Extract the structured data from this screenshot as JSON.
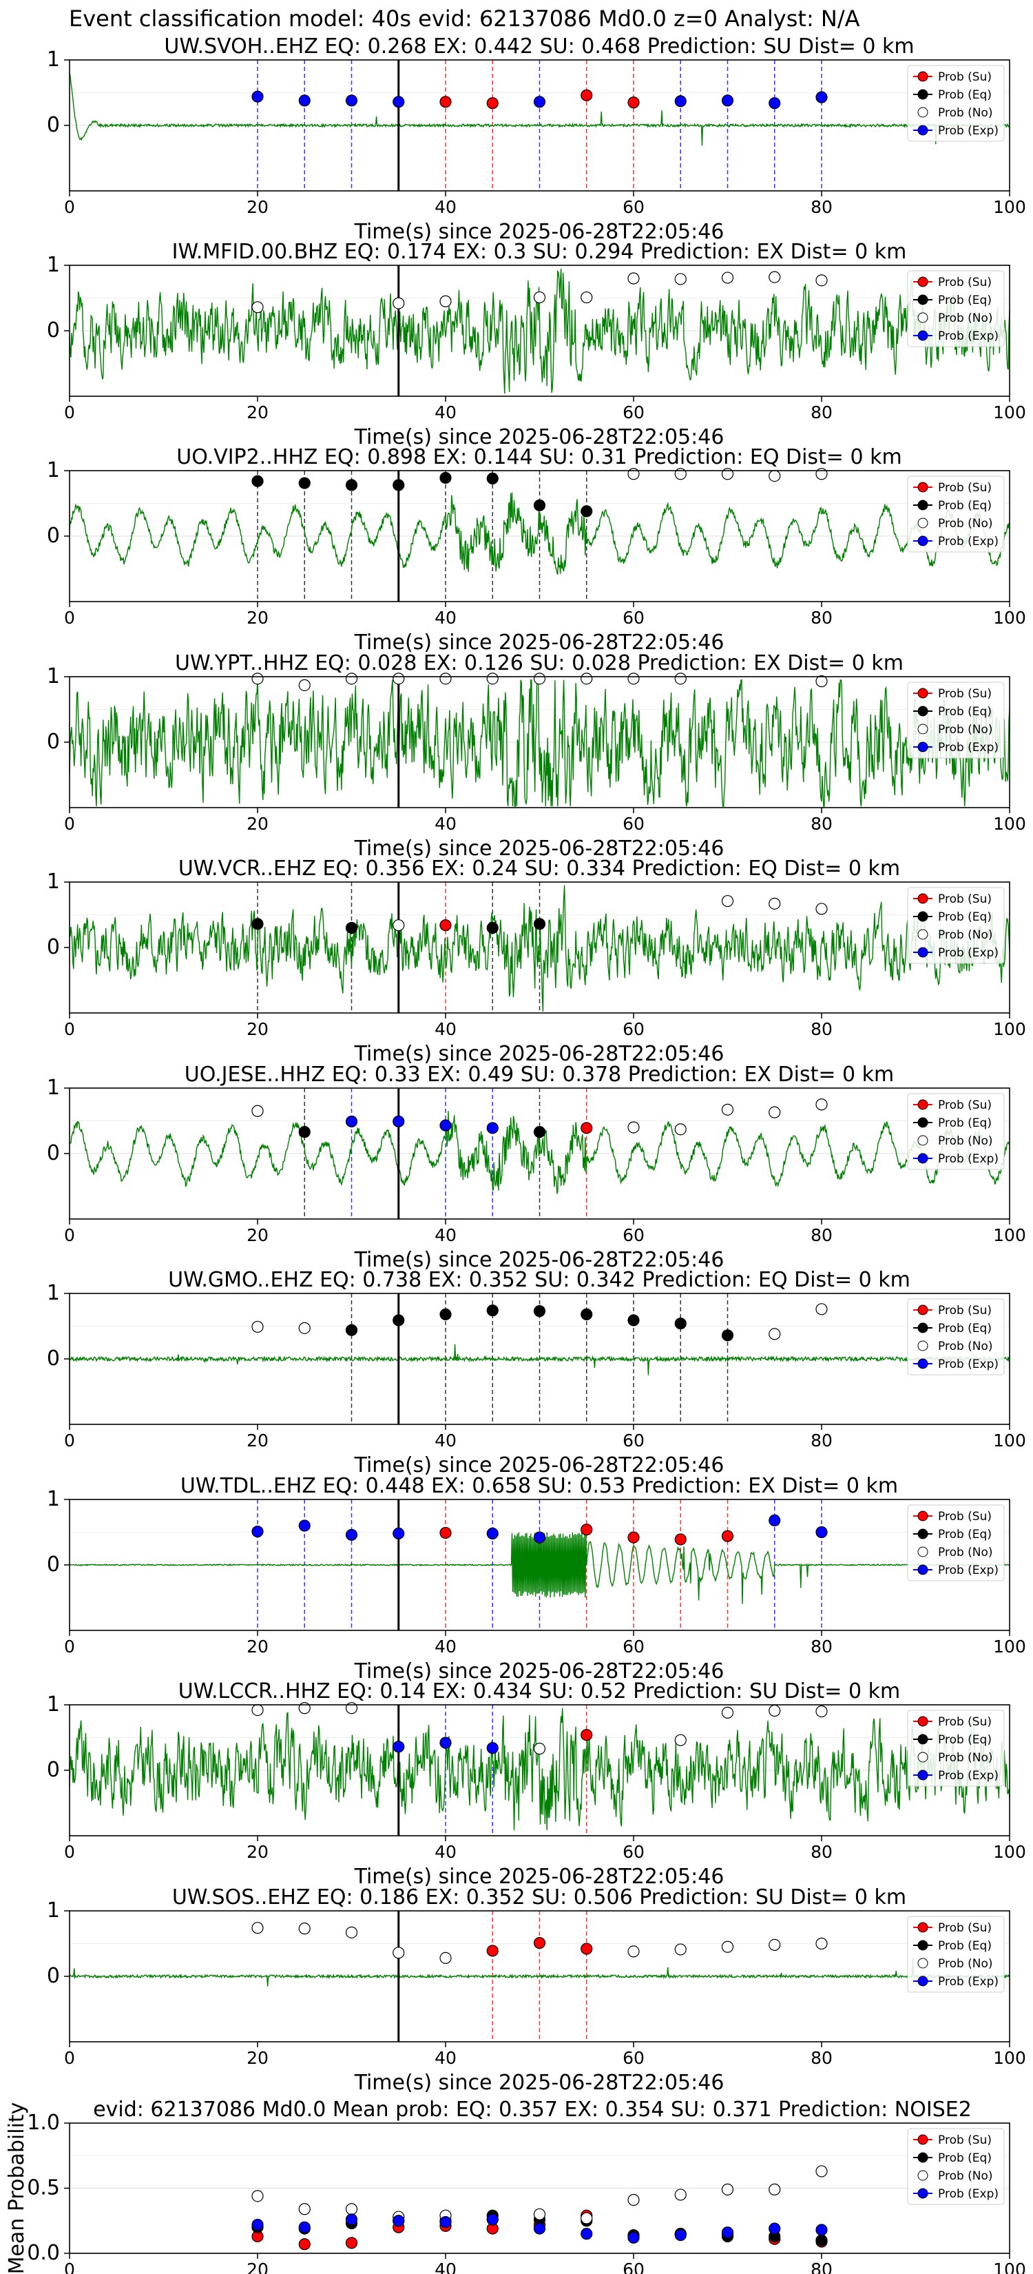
{
  "figure": {
    "suptitle": "Event classification model: 40s evid: 62137086 Md0.0 z=0 Analyst: N/A",
    "colors": {
      "su": "#ff0000",
      "eq": "#000000",
      "no": "#ffffff",
      "exp": "#0000ff",
      "waveform": "#008000",
      "grid": "#dddddd"
    },
    "legend_labels": [
      "Prob (Su)",
      "Prob (Eq)",
      "Prob (No)",
      "Prob (Exp)"
    ],
    "x_ticks": [
      0,
      20,
      40,
      60,
      80,
      100
    ],
    "station_y_ticks": [
      0,
      1
    ],
    "origin_time_s": 35,
    "window_times": [
      20,
      25,
      30,
      35,
      40,
      45,
      50,
      55,
      60,
      65,
      70,
      75,
      80
    ]
  },
  "chart_data": [
    {
      "type": "line",
      "title": "UW.SVOH..EHZ   EQ: 0.268  EX: 0.442  SU: 0.468   Prediction: SU    Dist= 0 km",
      "xlabel": "Time(s) since 2025-06-28T22:05:46",
      "xlim": [
        0,
        100
      ],
      "ylim": [
        -1,
        1
      ],
      "grid": true,
      "legend": "upper-right",
      "waveform": {
        "style": "quiet",
        "amp": 0.02,
        "onset": 0
      },
      "windows": [
        {
          "t": 20,
          "label": "exp",
          "p": 0.44
        },
        {
          "t": 25,
          "label": "exp",
          "p": 0.38
        },
        {
          "t": 30,
          "label": "exp",
          "p": 0.38
        },
        {
          "t": 35,
          "label": "exp",
          "p": 0.36
        },
        {
          "t": 40,
          "label": "su",
          "p": 0.36
        },
        {
          "t": 45,
          "label": "su",
          "p": 0.34
        },
        {
          "t": 50,
          "label": "exp",
          "p": 0.36
        },
        {
          "t": 55,
          "label": "su",
          "p": 0.46
        },
        {
          "t": 60,
          "label": "su",
          "p": 0.35
        },
        {
          "t": 65,
          "label": "exp",
          "p": 0.37
        },
        {
          "t": 70,
          "label": "exp",
          "p": 0.38
        },
        {
          "t": 75,
          "label": "exp",
          "p": 0.34
        },
        {
          "t": 80,
          "label": "exp",
          "p": 0.43
        }
      ]
    },
    {
      "type": "line",
      "title": "IW.MFID.00.BHZ   EQ: 0.174  EX: 0.3  SU: 0.294   Prediction: EX    Dist= 0 km",
      "xlabel": "Time(s) since 2025-06-28T22:05:46",
      "xlim": [
        0,
        100
      ],
      "ylim": [
        -1,
        1
      ],
      "grid": true,
      "legend": "upper-right",
      "waveform": {
        "style": "noisy",
        "amp": 0.35,
        "seed": 2
      },
      "windows": [
        {
          "t": 20,
          "label": "no",
          "p": 0.36
        },
        {
          "t": 35,
          "label": "no",
          "p": 0.42
        },
        {
          "t": 40,
          "label": "no",
          "p": 0.45
        },
        {
          "t": 50,
          "label": "no",
          "p": 0.51
        },
        {
          "t": 55,
          "label": "no",
          "p": 0.51
        },
        {
          "t": 60,
          "label": "no",
          "p": 0.8
        },
        {
          "t": 65,
          "label": "no",
          "p": 0.79
        },
        {
          "t": 70,
          "label": "no",
          "p": 0.81
        },
        {
          "t": 75,
          "label": "no",
          "p": 0.82
        },
        {
          "t": 80,
          "label": "no",
          "p": 0.77
        }
      ]
    },
    {
      "type": "line",
      "title": "UO.VIP2..HHZ   EQ: 0.898  EX: 0.144  SU: 0.31   Prediction: EQ    Dist= 0 km",
      "xlabel": "Time(s) since 2025-06-28T22:05:46",
      "xlim": [
        0,
        100
      ],
      "ylim": [
        -1,
        1
      ],
      "grid": true,
      "legend": "upper-right",
      "waveform": {
        "style": "wavy",
        "amp": 0.4,
        "seed": 3
      },
      "windows": [
        {
          "t": 20,
          "label": "eq",
          "p": 0.84
        },
        {
          "t": 25,
          "label": "eq",
          "p": 0.81
        },
        {
          "t": 30,
          "label": "eq",
          "p": 0.78
        },
        {
          "t": 35,
          "label": "eq",
          "p": 0.78
        },
        {
          "t": 40,
          "label": "eq",
          "p": 0.89
        },
        {
          "t": 45,
          "label": "eq",
          "p": 0.88
        },
        {
          "t": 50,
          "label": "eq",
          "p": 0.47
        },
        {
          "t": 55,
          "label": "eq",
          "p": 0.38
        },
        {
          "t": 60,
          "label": "no",
          "p": 0.95
        },
        {
          "t": 65,
          "label": "no",
          "p": 0.95
        },
        {
          "t": 70,
          "label": "no",
          "p": 0.95
        },
        {
          "t": 75,
          "label": "no",
          "p": 0.92
        },
        {
          "t": 80,
          "label": "no",
          "p": 0.95
        }
      ]
    },
    {
      "type": "line",
      "title": "UW.YPT..HHZ   EQ: 0.028  EX: 0.126  SU: 0.028   Prediction: EX    Dist= 0 km",
      "xlabel": "Time(s) since 2025-06-28T22:05:46",
      "xlim": [
        0,
        100
      ],
      "ylim": [
        -1,
        1
      ],
      "grid": true,
      "legend": "upper-right",
      "waveform": {
        "style": "noisy",
        "amp": 0.5,
        "seed": 4
      },
      "windows": [
        {
          "t": 20,
          "label": "no",
          "p": 0.97
        },
        {
          "t": 25,
          "label": "no",
          "p": 0.87
        },
        {
          "t": 30,
          "label": "no",
          "p": 0.97
        },
        {
          "t": 35,
          "label": "no",
          "p": 0.97
        },
        {
          "t": 40,
          "label": "no",
          "p": 0.97
        },
        {
          "t": 45,
          "label": "no",
          "p": 0.97
        },
        {
          "t": 50,
          "label": "no",
          "p": 0.97
        },
        {
          "t": 55,
          "label": "no",
          "p": 0.97
        },
        {
          "t": 60,
          "label": "no",
          "p": 0.97
        },
        {
          "t": 65,
          "label": "no",
          "p": 0.97
        },
        {
          "t": 80,
          "label": "no",
          "p": 0.93
        }
      ]
    },
    {
      "type": "line",
      "title": "UW.VCR..EHZ   EQ: 0.356  EX: 0.24  SU: 0.334   Prediction: EQ    Dist= 0 km",
      "xlabel": "Time(s) since 2025-06-28T22:05:46",
      "xlim": [
        0,
        100
      ],
      "ylim": [
        -1,
        1
      ],
      "grid": true,
      "legend": "upper-right",
      "waveform": {
        "style": "noisy",
        "amp": 0.3,
        "seed": 5
      },
      "windows": [
        {
          "t": 20,
          "label": "eq",
          "p": 0.36
        },
        {
          "t": 30,
          "label": "eq",
          "p": 0.3
        },
        {
          "t": 35,
          "label": "no",
          "p": 0.34
        },
        {
          "t": 40,
          "label": "su",
          "p": 0.34
        },
        {
          "t": 45,
          "label": "eq",
          "p": 0.3
        },
        {
          "t": 50,
          "label": "eq",
          "p": 0.36
        },
        {
          "t": 70,
          "label": "no",
          "p": 0.71
        },
        {
          "t": 75,
          "label": "no",
          "p": 0.67
        },
        {
          "t": 80,
          "label": "no",
          "p": 0.59
        }
      ]
    },
    {
      "type": "line",
      "title": "UO.JESE..HHZ   EQ: 0.33  EX: 0.49  SU: 0.378   Prediction: EX    Dist= 0 km",
      "xlabel": "Time(s) since 2025-06-28T22:05:46",
      "xlim": [
        0,
        100
      ],
      "ylim": [
        -1,
        1
      ],
      "grid": true,
      "legend": "upper-right",
      "waveform": {
        "style": "wavy",
        "amp": 0.4,
        "seed": 6
      },
      "windows": [
        {
          "t": 20,
          "label": "no",
          "p": 0.65
        },
        {
          "t": 25,
          "label": "eq",
          "p": 0.33
        },
        {
          "t": 30,
          "label": "exp",
          "p": 0.49
        },
        {
          "t": 35,
          "label": "exp",
          "p": 0.49
        },
        {
          "t": 40,
          "label": "exp",
          "p": 0.43
        },
        {
          "t": 45,
          "label": "exp",
          "p": 0.39
        },
        {
          "t": 50,
          "label": "eq",
          "p": 0.33
        },
        {
          "t": 55,
          "label": "su",
          "p": 0.39
        },
        {
          "t": 60,
          "label": "no",
          "p": 0.4
        },
        {
          "t": 65,
          "label": "no",
          "p": 0.37
        },
        {
          "t": 70,
          "label": "no",
          "p": 0.67
        },
        {
          "t": 75,
          "label": "no",
          "p": 0.63
        },
        {
          "t": 80,
          "label": "no",
          "p": 0.75
        }
      ]
    },
    {
      "type": "line",
      "title": "UW.GMO..EHZ   EQ: 0.738  EX: 0.352  SU: 0.342   Prediction: EQ    Dist= 0 km",
      "xlabel": "Time(s) since 2025-06-28T22:05:46",
      "xlim": [
        0,
        100
      ],
      "ylim": [
        -1,
        1
      ],
      "grid": true,
      "legend": "upper-right",
      "waveform": {
        "style": "quiet",
        "amp": 0.03,
        "seed": 7
      },
      "windows": [
        {
          "t": 20,
          "label": "no",
          "p": 0.49
        },
        {
          "t": 25,
          "label": "no",
          "p": 0.47
        },
        {
          "t": 30,
          "label": "eq",
          "p": 0.44
        },
        {
          "t": 35,
          "label": "eq",
          "p": 0.59
        },
        {
          "t": 40,
          "label": "eq",
          "p": 0.68
        },
        {
          "t": 45,
          "label": "eq",
          "p": 0.74
        },
        {
          "t": 50,
          "label": "eq",
          "p": 0.73
        },
        {
          "t": 55,
          "label": "eq",
          "p": 0.68
        },
        {
          "t": 60,
          "label": "eq",
          "p": 0.59
        },
        {
          "t": 65,
          "label": "eq",
          "p": 0.54
        },
        {
          "t": 70,
          "label": "eq",
          "p": 0.36
        },
        {
          "t": 75,
          "label": "no",
          "p": 0.38
        },
        {
          "t": 80,
          "label": "no",
          "p": 0.76
        }
      ]
    },
    {
      "type": "line",
      "title": "UW.TDL..EHZ   EQ: 0.448  EX: 0.658  SU: 0.53   Prediction: EX    Dist= 0 km",
      "xlabel": "Time(s) since 2025-06-28T22:05:46",
      "xlim": [
        0,
        100
      ],
      "ylim": [
        -1,
        1
      ],
      "grid": true,
      "legend": "upper-right",
      "waveform": {
        "style": "burst",
        "amp": 0.02,
        "seed": 8
      },
      "windows": [
        {
          "t": 20,
          "label": "exp",
          "p": 0.51
        },
        {
          "t": 25,
          "label": "exp",
          "p": 0.6
        },
        {
          "t": 30,
          "label": "exp",
          "p": 0.46
        },
        {
          "t": 35,
          "label": "exp",
          "p": 0.48
        },
        {
          "t": 40,
          "label": "su",
          "p": 0.49
        },
        {
          "t": 45,
          "label": "exp",
          "p": 0.48
        },
        {
          "t": 50,
          "label": "exp",
          "p": 0.42
        },
        {
          "t": 55,
          "label": "su",
          "p": 0.54
        },
        {
          "t": 60,
          "label": "su",
          "p": 0.42
        },
        {
          "t": 65,
          "label": "su",
          "p": 0.39
        },
        {
          "t": 70,
          "label": "su",
          "p": 0.44
        },
        {
          "t": 75,
          "label": "exp",
          "p": 0.68
        },
        {
          "t": 80,
          "label": "exp",
          "p": 0.5
        }
      ]
    },
    {
      "type": "line",
      "title": "UW.LCCR..HHZ   EQ: 0.14  EX: 0.434  SU: 0.52   Prediction: SU    Dist= 0 km",
      "xlabel": "Time(s) since 2025-06-28T22:05:46",
      "xlim": [
        0,
        100
      ],
      "ylim": [
        -1,
        1
      ],
      "grid": true,
      "legend": "upper-right",
      "waveform": {
        "style": "noisy",
        "amp": 0.4,
        "seed": 9
      },
      "windows": [
        {
          "t": 20,
          "label": "no",
          "p": 0.92
        },
        {
          "t": 25,
          "label": "no",
          "p": 0.95
        },
        {
          "t": 30,
          "label": "no",
          "p": 0.95
        },
        {
          "t": 35,
          "label": "exp",
          "p": 0.36
        },
        {
          "t": 40,
          "label": "exp",
          "p": 0.42
        },
        {
          "t": 45,
          "label": "exp",
          "p": 0.34
        },
        {
          "t": 50,
          "label": "no",
          "p": 0.33
        },
        {
          "t": 55,
          "label": "su",
          "p": 0.54
        },
        {
          "t": 65,
          "label": "no",
          "p": 0.46
        },
        {
          "t": 70,
          "label": "no",
          "p": 0.88
        },
        {
          "t": 75,
          "label": "no",
          "p": 0.91
        },
        {
          "t": 80,
          "label": "no",
          "p": 0.9
        }
      ]
    },
    {
      "type": "line",
      "title": "UW.SOS..EHZ   EQ: 0.186  EX: 0.352  SU: 0.506   Prediction: SU    Dist= 0 km",
      "xlabel": "Time(s) since 2025-06-28T22:05:46",
      "xlim": [
        0,
        100
      ],
      "ylim": [
        -1,
        1
      ],
      "grid": true,
      "legend": "upper-right",
      "waveform": {
        "style": "quiet",
        "amp": 0.02,
        "seed": 10
      },
      "windows": [
        {
          "t": 20,
          "label": "no",
          "p": 0.74
        },
        {
          "t": 25,
          "label": "no",
          "p": 0.73
        },
        {
          "t": 30,
          "label": "no",
          "p": 0.67
        },
        {
          "t": 35,
          "label": "no",
          "p": 0.36
        },
        {
          "t": 40,
          "label": "no",
          "p": 0.28
        },
        {
          "t": 45,
          "label": "su",
          "p": 0.39
        },
        {
          "t": 50,
          "label": "su",
          "p": 0.51
        },
        {
          "t": 55,
          "label": "su",
          "p": 0.42
        },
        {
          "t": 60,
          "label": "no",
          "p": 0.38
        },
        {
          "t": 65,
          "label": "no",
          "p": 0.41
        },
        {
          "t": 70,
          "label": "no",
          "p": 0.45
        },
        {
          "t": 75,
          "label": "no",
          "p": 0.48
        },
        {
          "t": 80,
          "label": "no",
          "p": 0.5
        }
      ]
    },
    {
      "type": "scatter",
      "title": "evid: 62137086  Md0.0   Mean prob:   EQ: 0.357  EX: 0.354  SU: 0.371   Prediction: NOISE2",
      "ylabel": "Mean Probability",
      "xlim": [
        0,
        100
      ],
      "ylim": [
        0,
        1
      ],
      "y_ticks": [
        0.0,
        0.5,
        1.0
      ],
      "grid": true,
      "legend": "upper-right",
      "series": [
        {
          "name": "Prob (Su)",
          "key": "su",
          "x": [
            20,
            25,
            30,
            35,
            40,
            45,
            50,
            55,
            60,
            65,
            70,
            75,
            80
          ],
          "values": [
            0.13,
            0.07,
            0.08,
            0.2,
            0.21,
            0.19,
            0.22,
            0.29,
            0.13,
            0.15,
            0.14,
            0.11,
            0.09
          ]
        },
        {
          "name": "Prob (Eq)",
          "key": "eq",
          "x": [
            20,
            25,
            30,
            35,
            40,
            45,
            50,
            55,
            60,
            65,
            70,
            75,
            80
          ],
          "values": [
            0.2,
            0.19,
            0.23,
            0.25,
            0.25,
            0.29,
            0.26,
            0.25,
            0.14,
            0.15,
            0.13,
            0.13,
            0.1
          ]
        },
        {
          "name": "Prob (No)",
          "key": "no",
          "x": [
            20,
            25,
            30,
            35,
            40,
            45,
            50,
            55,
            60,
            65,
            70,
            75,
            80
          ],
          "values": [
            0.44,
            0.34,
            0.34,
            0.28,
            0.29,
            0.26,
            0.3,
            0.27,
            0.41,
            0.45,
            0.49,
            0.49,
            0.63
          ]
        },
        {
          "name": "Prob (Exp)",
          "key": "exp",
          "x": [
            20,
            25,
            30,
            35,
            40,
            45,
            50,
            55,
            60,
            65,
            70,
            75,
            80
          ],
          "values": [
            0.22,
            0.2,
            0.26,
            0.25,
            0.24,
            0.26,
            0.19,
            0.15,
            0.12,
            0.14,
            0.16,
            0.19,
            0.18
          ]
        }
      ]
    }
  ]
}
